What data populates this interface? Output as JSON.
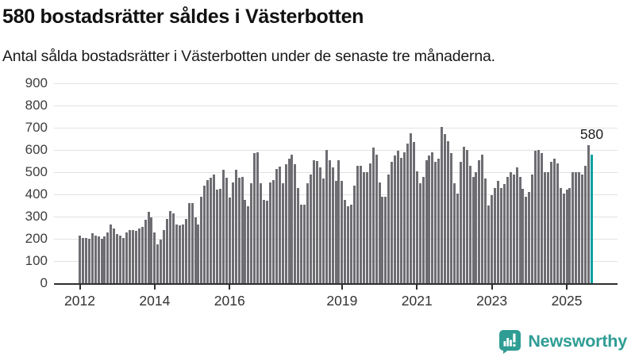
{
  "header": {
    "title": "580 bostadsrätter såldes i Västerbotten",
    "subtitle": "Antal sålda bostadsrätter i Västerbotten under de senaste tre månaderna."
  },
  "chart_data": {
    "type": "bar",
    "title": "580 bostadsrätter såldes i Västerbotten",
    "xlabel": "",
    "ylabel": "",
    "frequency": "monthly",
    "x_start": "2012-01",
    "x_end": "2025-09",
    "ylim": [
      0,
      900
    ],
    "yticks": [
      0,
      100,
      200,
      300,
      400,
      500,
      600,
      700,
      800,
      900
    ],
    "xticks": [
      {
        "label": "2012",
        "index": 0
      },
      {
        "label": "2014",
        "index": 24
      },
      {
        "label": "2016",
        "index": 48
      },
      {
        "label": "2019",
        "index": 84
      },
      {
        "label": "2021",
        "index": 108
      },
      {
        "label": "2023",
        "index": 132
      },
      {
        "label": "2025",
        "index": 156
      }
    ],
    "grid": "horizontal",
    "legend": "none",
    "bar_color": "#6d6d72",
    "values": [
      215,
      205,
      205,
      200,
      225,
      215,
      210,
      200,
      210,
      230,
      265,
      245,
      220,
      215,
      205,
      230,
      240,
      240,
      235,
      245,
      255,
      285,
      320,
      295,
      230,
      175,
      195,
      240,
      290,
      325,
      315,
      265,
      260,
      265,
      290,
      360,
      360,
      295,
      265,
      390,
      440,
      465,
      475,
      490,
      420,
      425,
      510,
      475,
      385,
      455,
      510,
      475,
      480,
      375,
      345,
      450,
      585,
      590,
      450,
      375,
      370,
      455,
      465,
      515,
      525,
      450,
      535,
      560,
      580,
      535,
      430,
      355,
      355,
      450,
      490,
      555,
      550,
      520,
      470,
      600,
      555,
      520,
      460,
      555,
      460,
      375,
      345,
      355,
      440,
      530,
      530,
      500,
      500,
      540,
      610,
      580,
      455,
      390,
      390,
      490,
      545,
      575,
      595,
      565,
      590,
      630,
      675,
      635,
      505,
      450,
      480,
      555,
      575,
      590,
      545,
      560,
      705,
      670,
      640,
      585,
      450,
      405,
      545,
      615,
      600,
      530,
      480,
      500,
      555,
      580,
      470,
      350,
      395,
      430,
      460,
      430,
      445,
      480,
      500,
      490,
      520,
      480,
      425,
      390,
      410,
      490,
      595,
      600,
      585,
      500,
      500,
      545,
      560,
      540,
      430,
      405,
      420,
      430,
      500,
      500,
      500,
      490,
      530,
      620,
      580
    ],
    "highlight_last": {
      "label": "580",
      "value": 580,
      "color": "#0aa0a0"
    }
  },
  "footer": {
    "brand": "Newsworthy",
    "brand_color": "#2f9d94",
    "logo_icon": "speech-bubble-bar-chart"
  }
}
